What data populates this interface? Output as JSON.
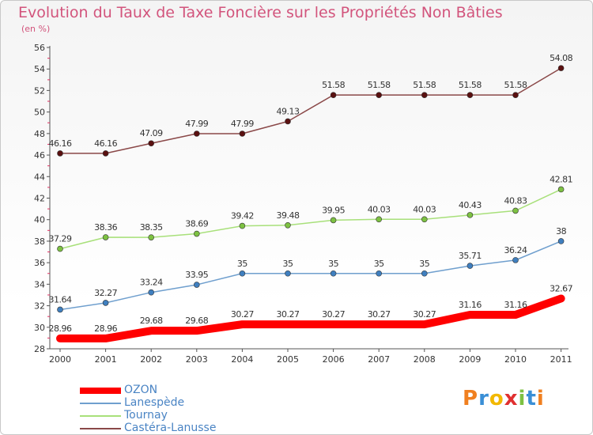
{
  "page": {
    "title": "Evolution du Taux de Taxe Foncière sur les Propriétés Non Bâties",
    "subtitle": "(en %)",
    "logo_text": "Proxiti"
  },
  "chart_data": {
    "type": "line",
    "title": "Evolution du Taux de Taxe Foncière sur les Propriétés Non Bâties",
    "ylabel": "(en %)",
    "xlabel": "",
    "x": [
      "2000",
      "2001",
      "2002",
      "2003",
      "2004",
      "2005",
      "2006",
      "2007",
      "2008",
      "2009",
      "2010",
      "2011"
    ],
    "ylim": [
      28,
      56
    ],
    "yticks": [
      28,
      30,
      32,
      34,
      36,
      38,
      40,
      42,
      44,
      46,
      48,
      50,
      52,
      54,
      56
    ],
    "grid": false,
    "legend": "bottom-left",
    "series": [
      {
        "name": "OZON",
        "color": "#ff0000",
        "highlight": true,
        "values": [
          28.96,
          28.96,
          29.68,
          29.68,
          30.27,
          30.27,
          30.27,
          30.27,
          30.27,
          31.16,
          31.16,
          32.67
        ],
        "labels": [
          "28.96",
          "28.96",
          "29.68",
          "29.68",
          "30.27",
          "30.27",
          "30.27",
          "30.27",
          "30.27",
          "31.16",
          "31.16",
          "32.67"
        ]
      },
      {
        "name": "Lanespède",
        "color": "#6f9fce",
        "marker_color": "#3f7fbf",
        "values": [
          31.64,
          32.27,
          33.24,
          33.95,
          35,
          35,
          35,
          35,
          35,
          35.71,
          36.24,
          38
        ],
        "labels": [
          "31.64",
          "32.27",
          "33.24",
          "33.95",
          "35",
          "35",
          "35",
          "35",
          "35",
          "35.71",
          "36.24",
          "38"
        ]
      },
      {
        "name": "Tournay",
        "color": "#a8e07a",
        "marker_color": "#7dc142",
        "values": [
          37.29,
          38.36,
          38.35,
          38.69,
          39.42,
          39.48,
          39.95,
          40.03,
          40.03,
          40.43,
          40.83,
          42.81
        ],
        "labels": [
          "37.29",
          "38.36",
          "38.35",
          "38.69",
          "39.42",
          "39.48",
          "39.95",
          "40.03",
          "40.03",
          "40.43",
          "40.83",
          "42.81"
        ]
      },
      {
        "name": "Castéra-Lanusse",
        "color": "#8a4848",
        "marker_color": "#5a1010",
        "values": [
          46.16,
          46.16,
          47.09,
          47.99,
          47.99,
          49.13,
          51.58,
          51.58,
          51.58,
          51.58,
          51.58,
          54.08
        ],
        "labels": [
          "46.16",
          "46.16",
          "47.09",
          "47.99",
          "47.99",
          "49.13",
          "51.58",
          "51.58",
          "51.58",
          "51.58",
          "51.58",
          "54.08"
        ]
      }
    ]
  }
}
